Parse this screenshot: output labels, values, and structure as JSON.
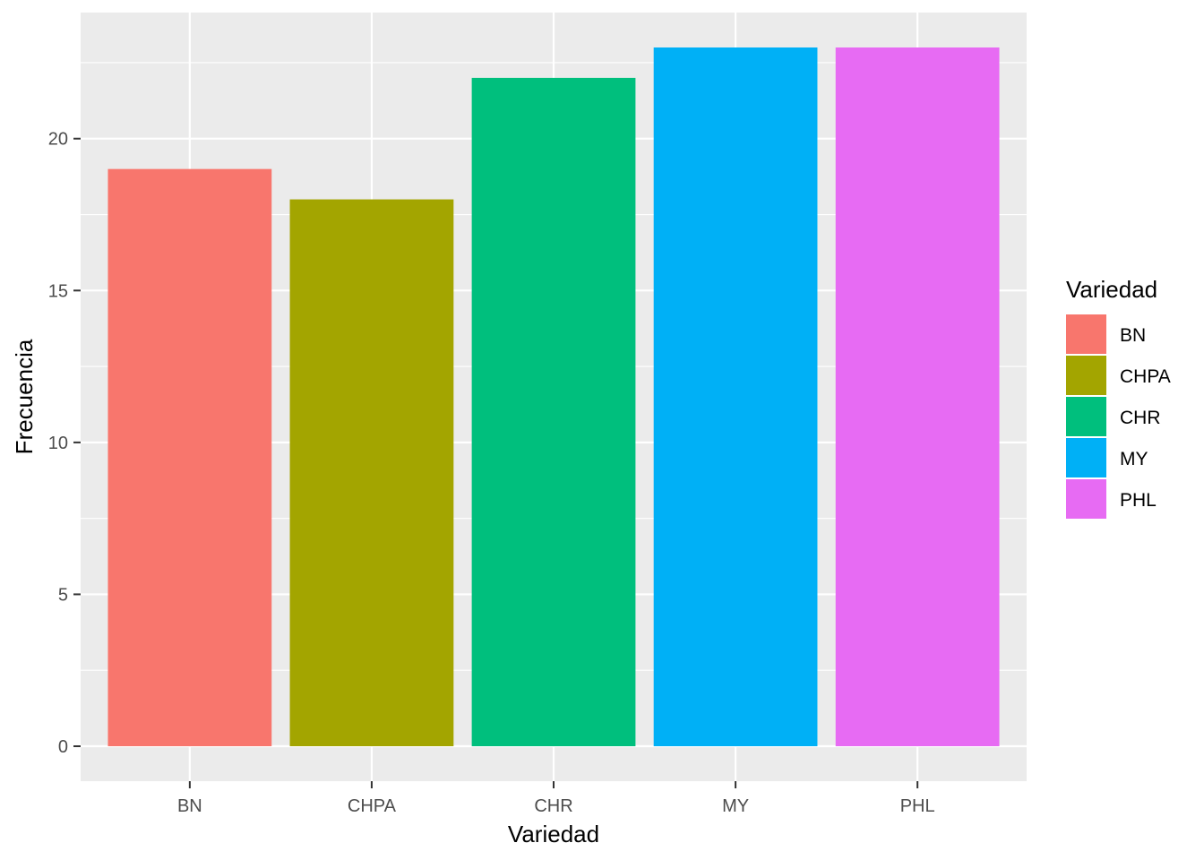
{
  "chart_data": {
    "type": "bar",
    "categories": [
      "BN",
      "CHPA",
      "CHR",
      "MY",
      "PHL"
    ],
    "values": [
      19,
      18,
      22,
      23,
      23
    ],
    "colors": [
      "#F8766D",
      "#A3A500",
      "#00BF7D",
      "#00B0F6",
      "#E76BF3"
    ],
    "xlabel": "Variedad",
    "ylabel": "Frecuencia",
    "ylim": [
      -1.15,
      24.15
    ],
    "yticks": [
      0,
      5,
      10,
      15,
      20
    ],
    "ytick_labels": [
      "0",
      "5",
      "10",
      "15",
      "20"
    ],
    "grid": true,
    "panel_background": "#EBEBEB",
    "legend": {
      "title": "Variedad",
      "position": "right",
      "entries": [
        "BN",
        "CHPA",
        "CHR",
        "MY",
        "PHL"
      ]
    }
  }
}
